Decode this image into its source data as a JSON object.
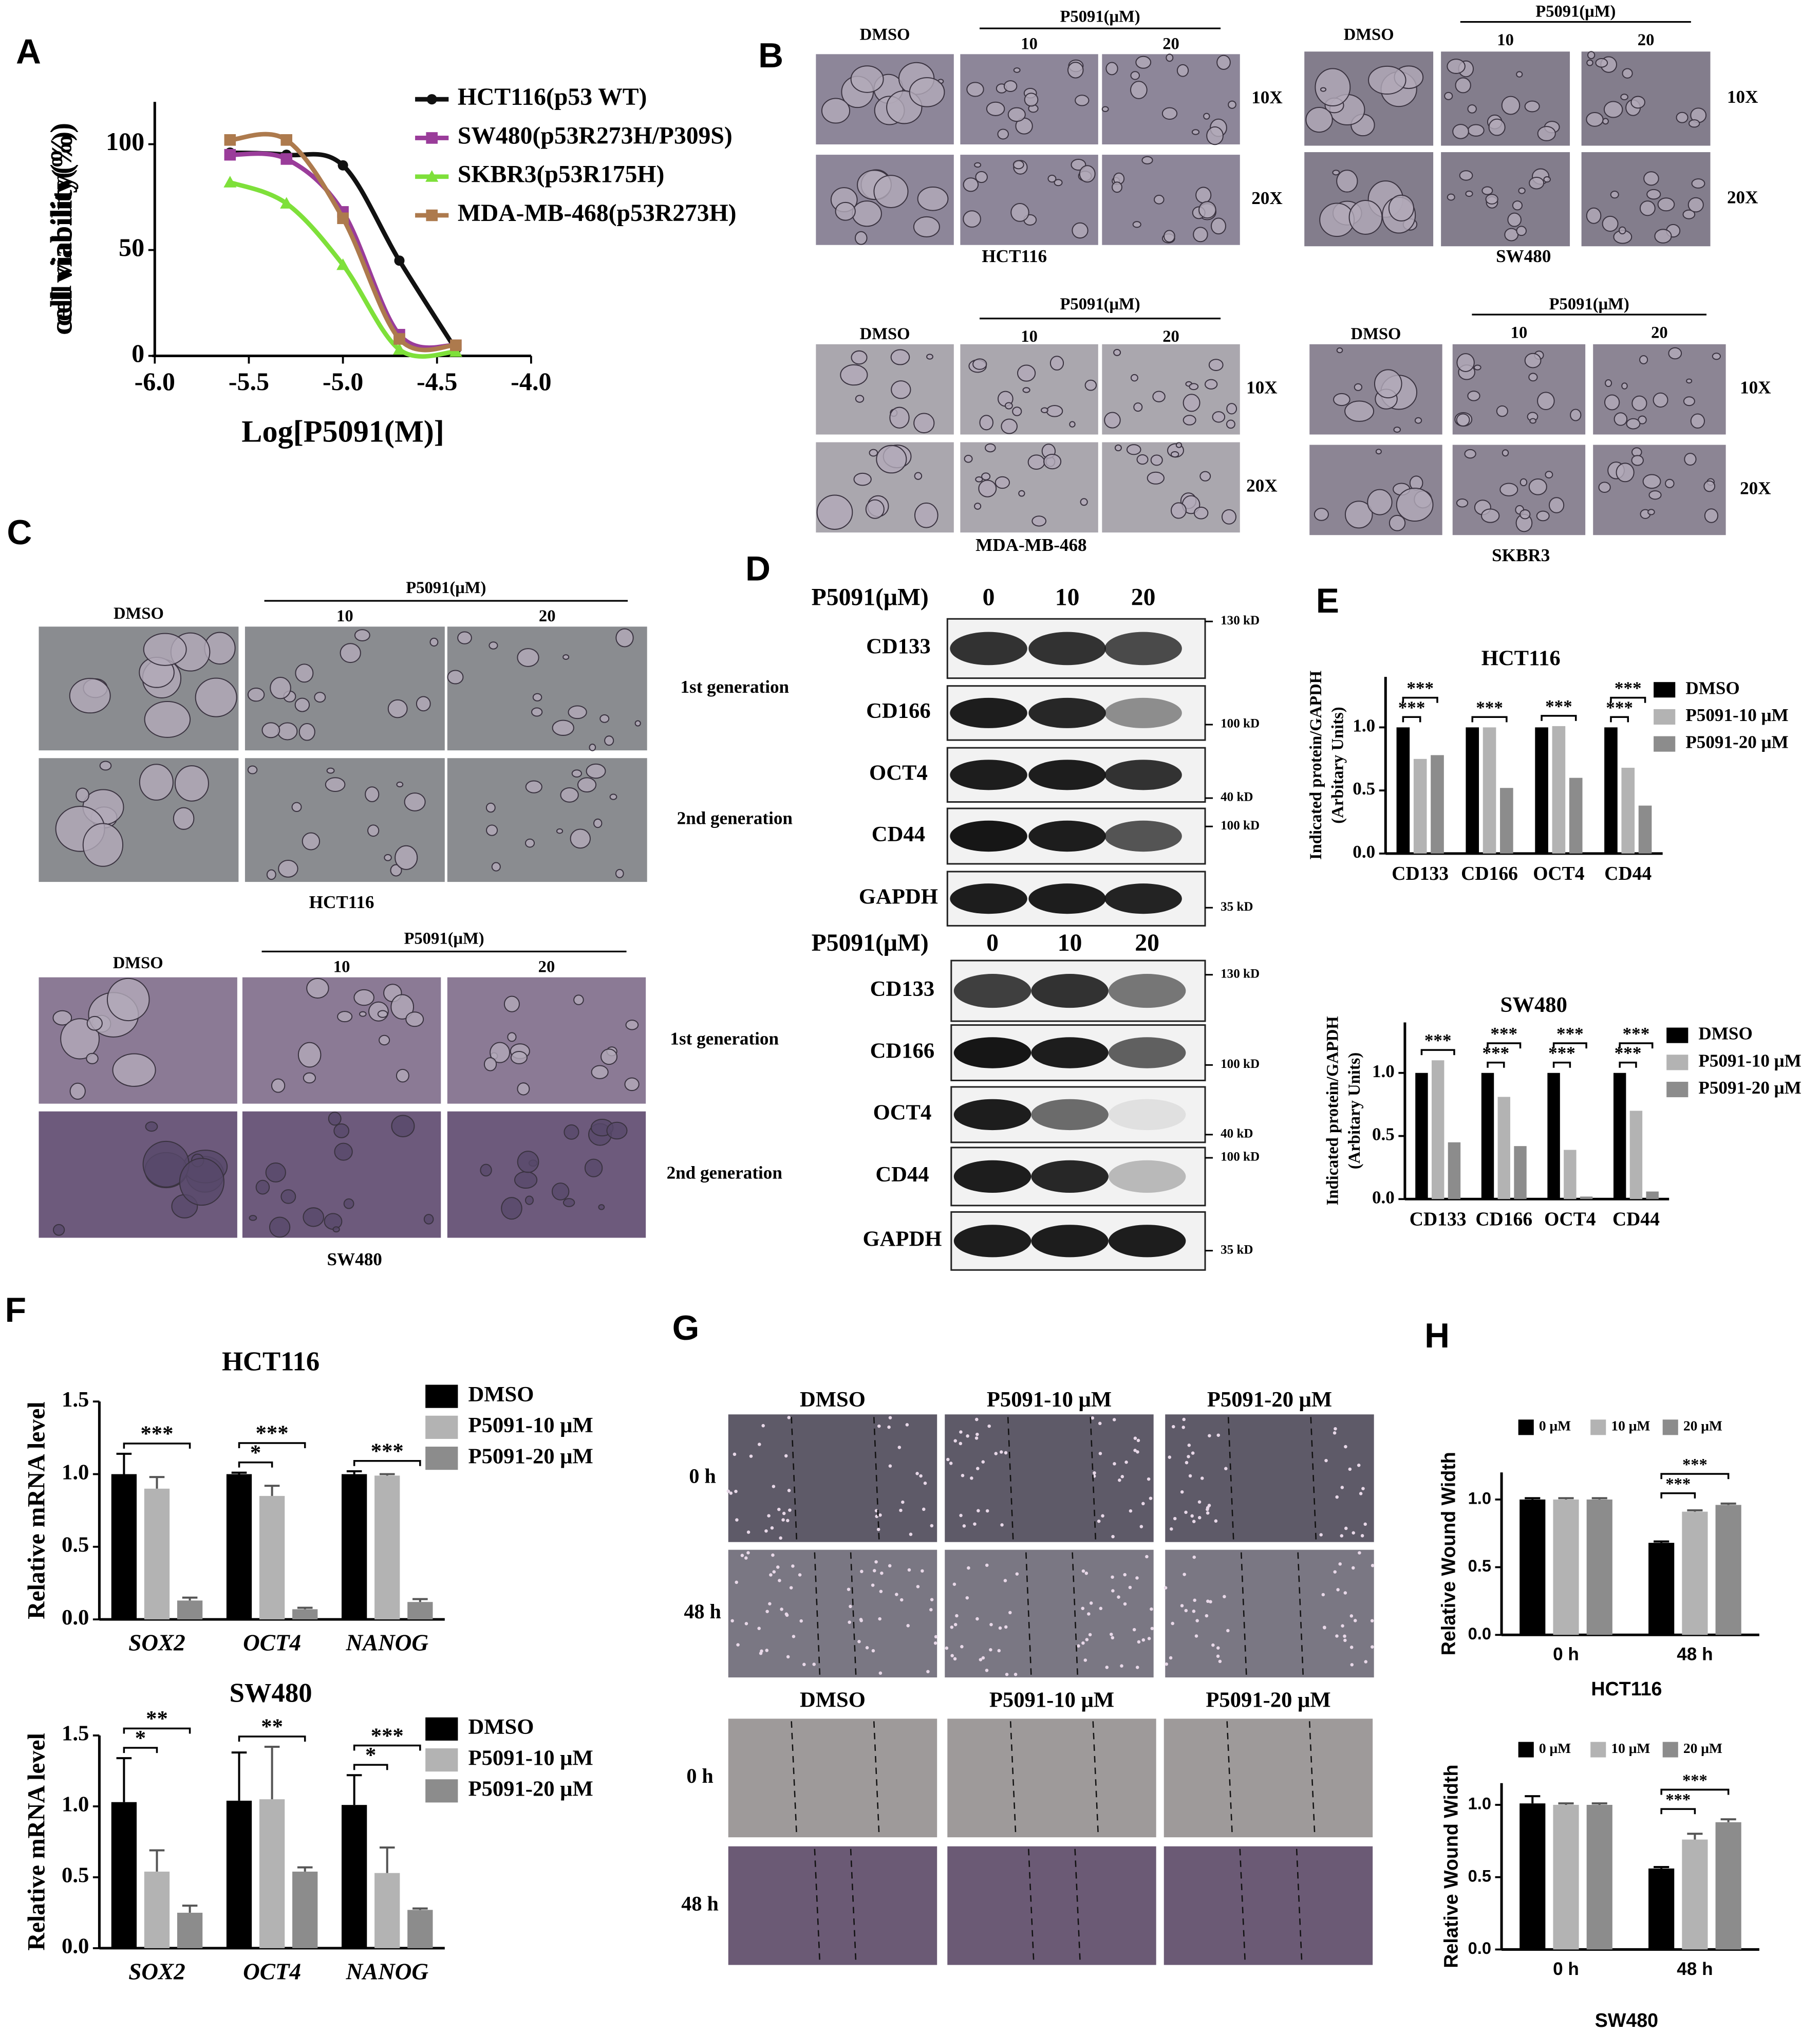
{
  "panel_letters": [
    "A",
    "B",
    "C",
    "D",
    "E",
    "F",
    "G",
    "H"
  ],
  "chart_data": [
    {
      "type": "line",
      "x_label": "Log[P5091(M)]",
      "y_label": "cell viability(%)",
      "x": [
        -5.6,
        -5.3,
        -5.0,
        -4.7,
        -4.4
      ],
      "series": [
        {
          "name": "HCT116(p53 WT)",
          "color": "#111111",
          "marker": "circle",
          "values": [
            96,
            95,
            90,
            45,
            3
          ]
        },
        {
          "name": "SW480(p53R273H/P309S)",
          "color": "#9a3c9a",
          "marker": "square",
          "values": [
            95,
            93,
            68,
            10,
            5
          ]
        },
        {
          "name": "SKBR3(p53R175H)",
          "color": "#7ee03a",
          "marker": "triangle",
          "values": [
            82,
            72,
            43,
            3,
            2
          ]
        },
        {
          "name": "MDA-MB-468(p53R273H)",
          "color": "#ad7a4d",
          "marker": "square",
          "values": [
            102,
            102,
            65,
            8,
            5
          ]
        }
      ],
      "xlim": [
        -6,
        -4
      ],
      "xticks": [
        {
          "value": -6,
          "label": "-6.0"
        },
        -5.5,
        {
          "value": -5,
          "label": "-5.0"
        },
        -4.5,
        {
          "value": -4,
          "label": "-4.0"
        }
      ],
      "ylim": [
        0,
        120
      ],
      "yticks": [
        0,
        50,
        100
      ]
    },
    {
      "type": "bar",
      "title": "HCT116",
      "y_label": [
        "Indicated protein/GAPDH",
        "(Arbitary Units)"
      ],
      "categories": [
        "CD133",
        "CD166",
        "OCT4",
        "CD44"
      ],
      "series": [
        {
          "name": "DMSO",
          "color": "#000000",
          "values": [
            1.0,
            1.0,
            1.0,
            1.0
          ]
        },
        {
          "name": "P5091-10 μM",
          "color": "#b3b3b3",
          "values": [
            0.75,
            1.0,
            1.01,
            0.68
          ]
        },
        {
          "name": "P5091-20 μM",
          "color": "#8c8c8c",
          "values": [
            0.78,
            0.52,
            0.6,
            0.38
          ]
        }
      ],
      "ylim": [
        0,
        1.4
      ],
      "yticks": [
        {
          "value": 0,
          "label": "0.0"
        },
        0.5,
        {
          "value": 1,
          "label": "1.0"
        }
      ],
      "legend": "right",
      "annotations": [
        {
          "text": "***",
          "category": "CD133",
          "from": "DMSO",
          "to": "P5091-10 μM"
        },
        {
          "text": "***",
          "category": "CD133",
          "from": "DMSO",
          "to": "P5091-20 μM"
        },
        {
          "text": "***",
          "category": "CD166",
          "from": "DMSO",
          "to": "P5091-20 μM"
        },
        {
          "text": "***",
          "category": "OCT4",
          "from": "DMSO",
          "to": "P5091-20 μM"
        },
        {
          "text": "***",
          "category": "CD44",
          "from": "DMSO",
          "to": "P5091-10 μM"
        },
        {
          "text": "***",
          "category": "CD44",
          "from": "DMSO",
          "to": "P5091-20 μM"
        }
      ]
    },
    {
      "type": "bar",
      "title": "SW480",
      "y_label": [
        "Indicated protein/GAPDH",
        "(Arbitary Units)"
      ],
      "categories": [
        "CD133",
        "CD166",
        "OCT4",
        "CD44"
      ],
      "series": [
        {
          "name": "DMSO",
          "color": "#000000",
          "values": [
            1.0,
            1.0,
            1.0,
            1.0
          ]
        },
        {
          "name": "P5091-10 μM",
          "color": "#b3b3b3",
          "values": [
            1.1,
            0.81,
            0.39,
            0.7
          ]
        },
        {
          "name": "P5091-20 μM",
          "color": "#8c8c8c",
          "values": [
            0.45,
            0.42,
            0.02,
            0.06
          ]
        }
      ],
      "ylim": [
        0,
        1.4
      ],
      "yticks": [
        {
          "value": 0,
          "label": "0.0"
        },
        0.5,
        {
          "value": 1,
          "label": "1.0"
        }
      ],
      "legend": "right",
      "annotations": [
        {
          "text": "***",
          "category": "CD133",
          "from": "DMSO",
          "to": "P5091-20 μM"
        },
        {
          "text": "***",
          "category": "CD166",
          "from": "DMSO",
          "to": "P5091-10 μM"
        },
        {
          "text": "***",
          "category": "CD166",
          "from": "DMSO",
          "to": "P5091-20 μM"
        },
        {
          "text": "***",
          "category": "OCT4",
          "from": "DMSO",
          "to": "P5091-10 μM"
        },
        {
          "text": "***",
          "category": "OCT4",
          "from": "DMSO",
          "to": "P5091-20 μM"
        },
        {
          "text": "***",
          "category": "CD44",
          "from": "DMSO",
          "to": "P5091-10 μM"
        },
        {
          "text": "***",
          "category": "CD44",
          "from": "DMSO",
          "to": "P5091-20 μM"
        }
      ]
    },
    {
      "type": "bar",
      "title": "HCT116",
      "y_label": "Relative mRNA level",
      "category_font_style": "italic",
      "categories": [
        "SOX2",
        "OCT4",
        "NANOG"
      ],
      "series": [
        {
          "name": "DMSO",
          "color": "#000000",
          "values": [
            1.0,
            1.0,
            1.0
          ],
          "errors": [
            0.14,
            0.01,
            0.02
          ]
        },
        {
          "name": "P5091-10 μM",
          "color": "#b3b3b3",
          "values": [
            0.9,
            0.85,
            0.99
          ],
          "errors": [
            0.08,
            0.07,
            0.01
          ]
        },
        {
          "name": "P5091-20 μM",
          "color": "#8c8c8c",
          "values": [
            0.13,
            0.07,
            0.12
          ],
          "errors": [
            0.02,
            0.01,
            0.02
          ]
        }
      ],
      "ylim": [
        0,
        1.5
      ],
      "yticks": [
        {
          "value": 0,
          "label": "0.0"
        },
        0.5,
        {
          "value": 1,
          "label": "1.0"
        },
        1.5
      ],
      "legend": "right",
      "annotations": [
        {
          "text": "***",
          "category": "SOX2",
          "from": "DMSO",
          "to": "P5091-20 μM"
        },
        {
          "text": "*",
          "category": "OCT4",
          "from": "DMSO",
          "to": "P5091-10 μM"
        },
        {
          "text": "***",
          "category": "OCT4",
          "from": "DMSO",
          "to": "P5091-20 μM"
        },
        {
          "text": "***",
          "category": "NANOG",
          "from": "DMSO",
          "to": "P5091-20 μM"
        }
      ]
    },
    {
      "type": "bar",
      "title": "SW480",
      "y_label": "Relative mRNA level",
      "category_font_style": "italic",
      "categories": [
        "SOX2",
        "OCT4",
        "NANOG"
      ],
      "series": [
        {
          "name": "DMSO",
          "color": "#000000",
          "values": [
            1.03,
            1.04,
            1.01
          ],
          "errors": [
            0.31,
            0.34,
            0.21
          ]
        },
        {
          "name": "P5091-10 μM",
          "color": "#b3b3b3",
          "values": [
            0.54,
            1.05,
            0.53
          ],
          "errors": [
            0.15,
            0.37,
            0.18
          ]
        },
        {
          "name": "P5091-20 μM",
          "color": "#8c8c8c",
          "values": [
            0.25,
            0.54,
            0.27
          ],
          "errors": [
            0.05,
            0.03,
            0.01
          ]
        }
      ],
      "ylim": [
        0,
        1.5
      ],
      "yticks": [
        {
          "value": 0,
          "label": "0.0"
        },
        0.5,
        {
          "value": 1,
          "label": "1.0"
        },
        1.5
      ],
      "legend": "right",
      "annotations": [
        {
          "text": "*",
          "category": "SOX2",
          "from": "DMSO",
          "to": "P5091-10 μM"
        },
        {
          "text": "**",
          "category": "SOX2",
          "from": "DMSO",
          "to": "P5091-20 μM"
        },
        {
          "text": "**",
          "category": "OCT4",
          "from": "DMSO",
          "to": "P5091-20 μM"
        },
        {
          "text": "*",
          "category": "NANOG",
          "from": "DMSO",
          "to": "P5091-10 μM"
        },
        {
          "text": "***",
          "category": "NANOG",
          "from": "DMSO",
          "to": "P5091-20 μM"
        }
      ]
    },
    {
      "type": "bar",
      "x_label": "HCT116",
      "y_label": "Relative Wound Width",
      "font": "sans",
      "categories": [
        "0 h",
        "48 h"
      ],
      "series": [
        {
          "name": "0 μM",
          "color": "#000000",
          "values": [
            1.0,
            0.68
          ],
          "errors": [
            0.01,
            0.01
          ]
        },
        {
          "name": "10 μM",
          "color": "#b3b3b3",
          "values": [
            1.0,
            0.91
          ],
          "errors": [
            0.01,
            0.01
          ]
        },
        {
          "name": "20 μM",
          "color": "#8c8c8c",
          "values": [
            1.0,
            0.96
          ],
          "errors": [
            0.01,
            0.01
          ]
        }
      ],
      "ylim": [
        0,
        1.2
      ],
      "yticks": [
        {
          "value": 0,
          "label": "0.0"
        },
        0.5,
        {
          "value": 1,
          "label": "1.0"
        }
      ],
      "legend": "top",
      "annotations": [
        {
          "text": "***",
          "category": "48 h",
          "from": "0 μM",
          "to": "10 μM"
        },
        {
          "text": "***",
          "category": "48 h",
          "from": "0 μM",
          "to": "20 μM"
        }
      ]
    },
    {
      "type": "bar",
      "x_label": "SW480",
      "y_label": "Relative Wound Width",
      "font": "sans",
      "categories": [
        "0 h",
        "48 h"
      ],
      "series": [
        {
          "name": "0 μM",
          "color": "#000000",
          "values": [
            1.01,
            0.56
          ],
          "errors": [
            0.05,
            0.01
          ]
        },
        {
          "name": "10 μM",
          "color": "#b3b3b3",
          "values": [
            1.0,
            0.76
          ],
          "errors": [
            0.01,
            0.04
          ]
        },
        {
          "name": "20 μM",
          "color": "#8c8c8c",
          "values": [
            1.0,
            0.88
          ],
          "errors": [
            0.01,
            0.02
          ]
        }
      ],
      "ylim": [
        0,
        1.15
      ],
      "yticks": [
        {
          "value": 0,
          "label": "0.0"
        },
        0.5,
        {
          "value": 1,
          "label": "1.0"
        }
      ],
      "legend": "top",
      "annotations": [
        {
          "text": "***",
          "category": "48 h",
          "from": "0 μM",
          "to": "10 μM"
        },
        {
          "text": "***",
          "category": "48 h",
          "from": "0 μM",
          "to": "20 μM"
        }
      ]
    }
  ],
  "microscopy": [
    {
      "treatment": "P5091(μM)",
      "columns": [
        "DMSO",
        "10",
        "20"
      ],
      "rows": [
        "10X",
        "20X"
      ],
      "cell_line": "HCT116"
    },
    {
      "treatment": "P5091(μM)",
      "columns": [
        "DMSO",
        "10",
        "20"
      ],
      "rows": [
        "10X",
        "20X"
      ],
      "cell_line": "SW480"
    },
    {
      "treatment": "P5091(μM)",
      "columns": [
        "DMSO",
        "10",
        "20"
      ],
      "rows": [
        "10X",
        "20X"
      ],
      "cell_line": "MDA-MB-468"
    },
    {
      "treatment": "P5091(μM)",
      "columns": [
        "DMSO",
        "10",
        "20"
      ],
      "rows": [
        "10X",
        "20X"
      ],
      "cell_line": "SKBR3"
    },
    {
      "treatment": "P5091(μM)",
      "columns": [
        "DMSO",
        "10",
        "20"
      ],
      "rows": [
        "1st generation",
        "2nd generation"
      ],
      "cell_line": "HCT116"
    },
    {
      "treatment": "P5091(μM)",
      "columns": [
        "DMSO",
        "10",
        "20"
      ],
      "rows": [
        "1st generation",
        "2nd generation"
      ],
      "cell_line": "SW480"
    }
  ],
  "western_blots": [
    {
      "treatment": "P5091(μM)",
      "doses": [
        "0",
        "10",
        "20"
      ],
      "bands": [
        "CD133",
        "CD166",
        "OCT4",
        "CD44",
        "GAPDH"
      ],
      "markers": [
        "130 kD",
        "100 kD",
        "40 kD",
        "100 kD",
        "35 kD"
      ]
    },
    {
      "treatment": "P5091(μM)",
      "doses": [
        "0",
        "10",
        "20"
      ],
      "bands": [
        "CD133",
        "CD166",
        "OCT4",
        "CD44",
        "GAPDH"
      ],
      "markers": [
        "130 kD",
        "100 kD",
        "40 kD",
        "100 kD",
        "35 kD"
      ]
    }
  ],
  "wound_healing": [
    {
      "columns": [
        "DMSO",
        "P5091-10 μM",
        "P5091-20 μM"
      ],
      "rows": [
        "0 h",
        "48 h"
      ]
    },
    {
      "columns": [
        "DMSO",
        "P5091-10 μM",
        "P5091-20 μM"
      ],
      "rows": [
        "0 h",
        "48 h"
      ]
    }
  ]
}
